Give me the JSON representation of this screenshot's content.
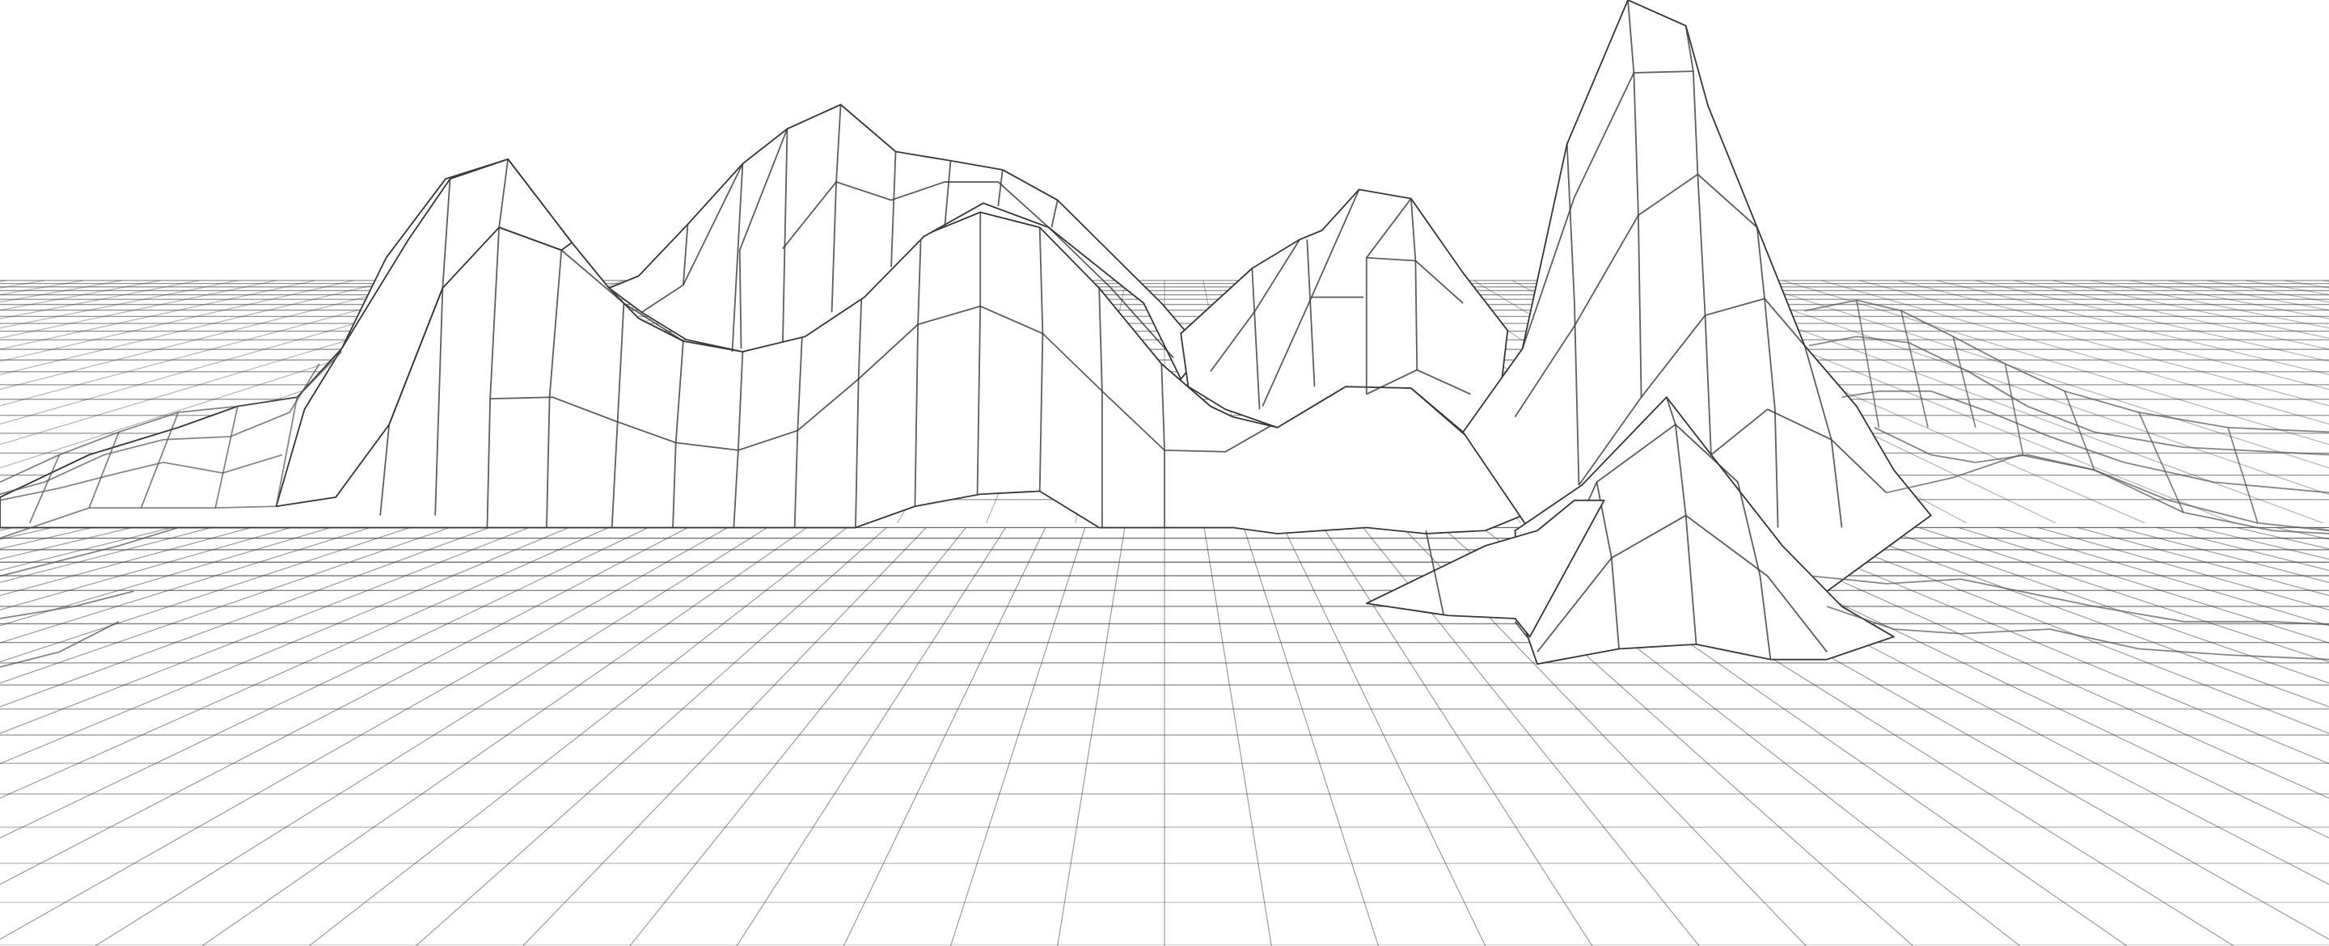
{
  "artwork": {
    "subject": "wireframe-mountain-terrain",
    "style": "line-art",
    "colors": {
      "background": "#ffffff",
      "line_near": "#3a3a3a",
      "line_far": "#cfcfcf",
      "fill": "#ffffff"
    }
  }
}
